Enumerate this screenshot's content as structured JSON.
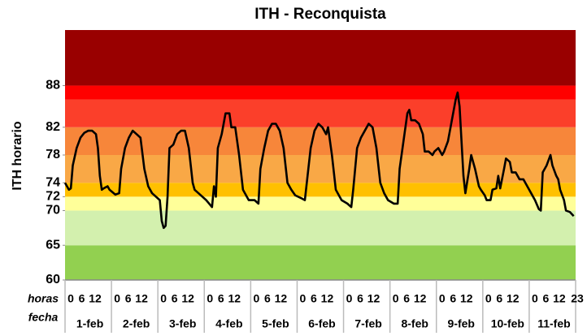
{
  "chart_data": {
    "type": "line",
    "title": "ITH - Reconquista",
    "y_label": "ITH horario",
    "row_labels": [
      "horas",
      "fecha"
    ],
    "hour_labels": [
      "0",
      "6",
      "12"
    ],
    "last_hour_label": "23",
    "categories": [
      "1-feb",
      "2-feb",
      "3-feb",
      "4-feb",
      "5-feb",
      "6-feb",
      "7-feb",
      "8-feb",
      "9-feb",
      "10-feb",
      "11-feb"
    ],
    "xlim": [
      0,
      264
    ],
    "ylim": [
      60,
      96
    ],
    "yticks": [
      60,
      65,
      70,
      72,
      74,
      78,
      82,
      88
    ],
    "color": "#000000",
    "bands": [
      {
        "from": 60,
        "to": 65,
        "color": "#92d050"
      },
      {
        "from": 65,
        "to": 70,
        "color": "#d3f0ae"
      },
      {
        "from": 70,
        "to": 72,
        "color": "#ffff99"
      },
      {
        "from": 72,
        "to": 74,
        "color": "#ffc000"
      },
      {
        "from": 74,
        "to": 78,
        "color": "#f9a846"
      },
      {
        "from": 78,
        "to": 82,
        "color": "#f7863a"
      },
      {
        "from": 82,
        "to": 86,
        "color": "#fb3f2a"
      },
      {
        "from": 86,
        "to": 88,
        "color": "#ff0000"
      },
      {
        "from": 88,
        "to": 96,
        "color": "#990000"
      }
    ],
    "x": [
      0,
      2,
      3,
      4,
      6,
      8,
      10,
      12,
      14,
      16,
      17,
      18,
      19,
      20,
      22,
      23,
      26,
      28,
      29,
      31,
      33,
      35,
      37,
      39,
      41,
      43,
      45,
      47,
      49,
      50,
      51,
      52,
      53,
      54,
      56,
      58,
      60,
      62,
      64,
      66,
      67,
      69,
      71,
      73,
      76,
      77,
      78,
      79,
      81,
      83,
      85,
      86,
      88,
      90,
      92,
      94,
      95,
      98,
      100,
      101,
      103,
      105,
      107,
      109,
      111,
      113,
      115,
      117,
      119,
      122,
      124,
      125,
      127,
      129,
      131,
      133,
      135,
      136,
      138,
      140,
      142,
      143,
      146,
      148,
      149,
      151,
      153,
      155,
      157,
      159,
      161,
      163,
      165,
      167,
      170,
      172,
      173,
      175,
      177,
      178,
      179,
      181,
      183,
      185,
      186,
      188,
      190,
      191,
      193,
      195,
      196,
      198,
      200,
      202,
      203,
      204,
      205,
      206,
      207,
      209,
      210,
      212,
      214,
      215,
      217,
      218,
      220,
      221,
      223,
      224,
      225,
      227,
      228,
      230,
      231,
      233,
      235,
      237,
      239,
      241,
      243,
      245,
      246,
      247,
      249,
      251,
      252,
      254,
      255,
      256,
      258,
      259,
      261,
      263
    ],
    "values": [
      74,
      73,
      73.2,
      76.5,
      79,
      80.5,
      81.2,
      81.5,
      81.5,
      81,
      79,
      75,
      73,
      73.2,
      73.5,
      73,
      72.3,
      72.5,
      76,
      79,
      80.5,
      81.5,
      81,
      80.5,
      76,
      73.5,
      72.5,
      72,
      71.5,
      68.5,
      67.5,
      67.8,
      72,
      79,
      79.5,
      81,
      81.5,
      81.5,
      79,
      74,
      73,
      72.5,
      72,
      71.5,
      70.5,
      73.5,
      72,
      79,
      81,
      84,
      84,
      82,
      82,
      78,
      73,
      72,
      71.5,
      71.5,
      71,
      76,
      79,
      81.5,
      82.5,
      82.5,
      81.5,
      79,
      74,
      73,
      72.2,
      71.8,
      71.5,
      74,
      79,
      81.5,
      82.5,
      82,
      81,
      82,
      78,
      73,
      72,
      71.5,
      71,
      70.5,
      73,
      79,
      80.5,
      81.5,
      82.5,
      82,
      79,
      74,
      72.5,
      71.5,
      71,
      71,
      76,
      80,
      84,
      84.5,
      83,
      83,
      82.5,
      81,
      78.5,
      78.5,
      78,
      78.5,
      79,
      78,
      78.5,
      80,
      83,
      86,
      87,
      85,
      80,
      75,
      72.5,
      76,
      78,
      76,
      73.5,
      73,
      72.2,
      71.5,
      71.5,
      73,
      73.2,
      75,
      73.2,
      76,
      77.5,
      77,
      75.5,
      75.5,
      74.5,
      74.5,
      73.5,
      72.5,
      71.5,
      70.2,
      70,
      75.5,
      76.5,
      78,
      76.5,
      75,
      74.5,
      73,
      71.5,
      70,
      69.8,
      69.2
    ]
  }
}
